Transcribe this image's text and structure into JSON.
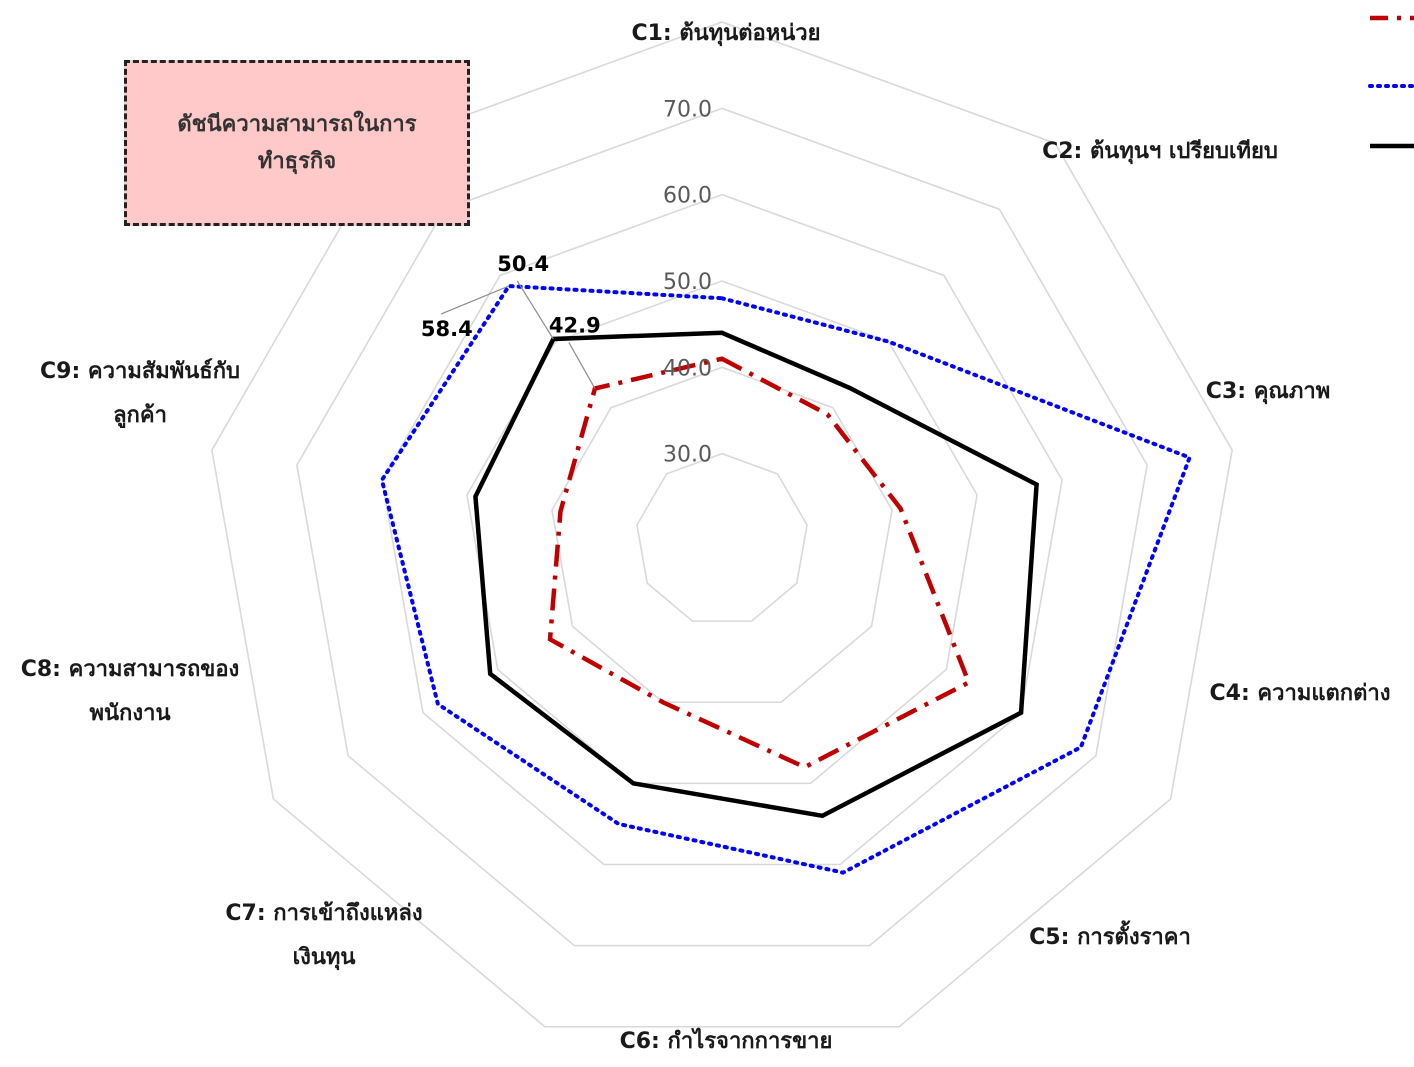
{
  "title_box": {
    "line1": "ดัชนีความสามารถในการ",
    "line2": "ทำธุรกิจ"
  },
  "colors": {
    "grid": "#d9d9d9",
    "series_red": "#c00000",
    "series_blue": "#0000ff",
    "series_black": "#000000",
    "title_box_fill": "#ffc9c9"
  },
  "chart_data": {
    "type": "radar",
    "categories": [
      [
        "C1: ต้นทุนต่อหน่วย"
      ],
      [
        "C2: ต้นทุนฯ เปรียบเทียบ"
      ],
      [
        "C3: คุณภาพ"
      ],
      [
        "C4: ความแตกต่าง"
      ],
      [
        "C5: การตั้งราคา"
      ],
      [
        "C6: กำไรจากการขาย"
      ],
      [
        "C7: การเข้าถึงแหล่ง",
        "เงินทุน"
      ],
      [
        "C8: ความสามารถของ",
        "พนักงาน"
      ],
      [
        "C9: ความสัมพันธ์กับ",
        "ลูกค้า"
      ]
    ],
    "rlim": [
      20,
      80
    ],
    "ticks": [
      "30.0",
      "40.0",
      "50.0",
      "60.0",
      "70.0"
    ],
    "tick_values": [
      30,
      40,
      50,
      60,
      70
    ],
    "grid": true,
    "legend_position": "top-right",
    "series": [
      {
        "values": [
          41,
          39,
          41,
          53,
          48,
          40,
          43,
          39,
          42.9
        ],
        "color": "#c00000",
        "dash": "dashdot"
      },
      {
        "values": [
          48,
          50,
          75,
          68,
          61,
          55,
          58,
          60,
          58.4
        ],
        "color": "#0000ff",
        "dash": "dotted"
      },
      {
        "values": [
          44,
          43,
          57,
          60,
          54,
          50,
          51,
          49,
          50.4
        ],
        "color": "#000000",
        "dash": "solid"
      }
    ],
    "data_labels": [
      {
        "text": "58.4",
        "series": 1,
        "category": 8
      },
      {
        "text": "50.4",
        "series": 2,
        "category": 8
      },
      {
        "text": "42.9",
        "series": 0,
        "category": 8
      }
    ]
  }
}
